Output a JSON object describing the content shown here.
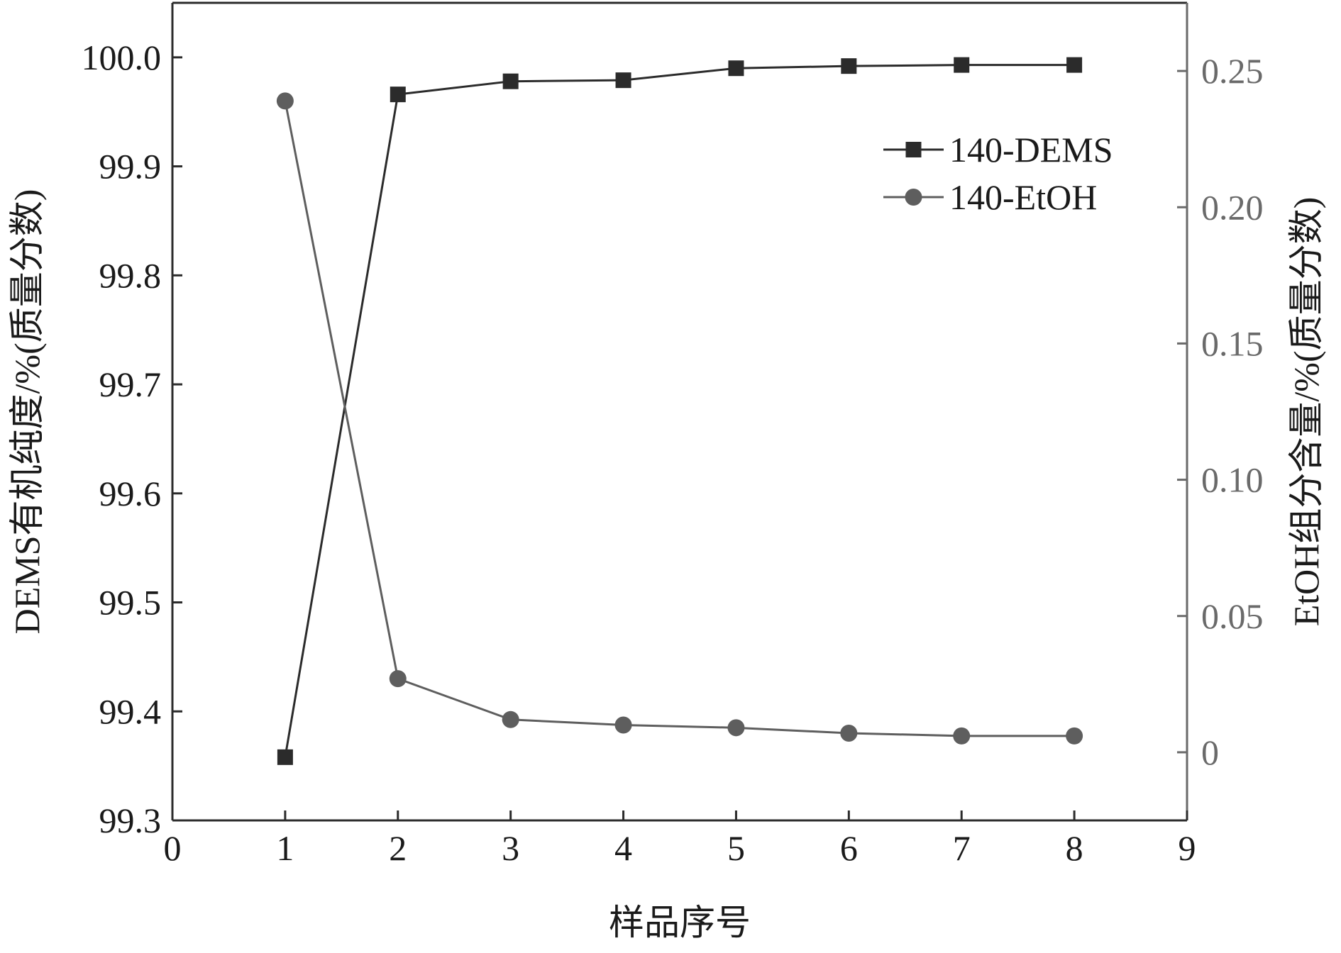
{
  "chart_data": {
    "type": "line",
    "xlabel": "样品序号",
    "ylabel_left": "DEMS有机纯度/%(质量分数)",
    "ylabel_right": "EtOH组分含量/%(质量分数)",
    "xlim": [
      0,
      9
    ],
    "ylim_left": [
      99.3,
      100.05
    ],
    "ylim_right": [
      -0.025,
      0.275
    ],
    "x_ticks": [
      "0",
      "1",
      "2",
      "3",
      "4",
      "5",
      "6",
      "7",
      "8",
      "9"
    ],
    "y_left_ticks": [
      "99.3",
      "99.4",
      "99.5",
      "99.6",
      "99.7",
      "99.8",
      "99.9",
      "100.0"
    ],
    "y_right_ticks": [
      "0",
      "0.05",
      "0.10",
      "0.15",
      "0.20",
      "0.25"
    ],
    "grid": false,
    "legend_position": "top-right",
    "series": [
      {
        "name": "140-DEMS",
        "axis": "left",
        "marker": "square",
        "color": "#2b2b2b",
        "x": [
          1,
          2,
          3,
          4,
          5,
          6,
          7,
          8
        ],
        "values": [
          99.358,
          99.966,
          99.978,
          99.979,
          99.99,
          99.992,
          99.993,
          99.993
        ]
      },
      {
        "name": "140-EtOH",
        "axis": "right",
        "marker": "circle",
        "color": "#5e5e5e",
        "x": [
          1,
          2,
          3,
          4,
          5,
          6,
          7,
          8
        ],
        "values": [
          0.239,
          0.027,
          0.012,
          0.01,
          0.009,
          0.007,
          0.006,
          0.006
        ]
      }
    ]
  }
}
